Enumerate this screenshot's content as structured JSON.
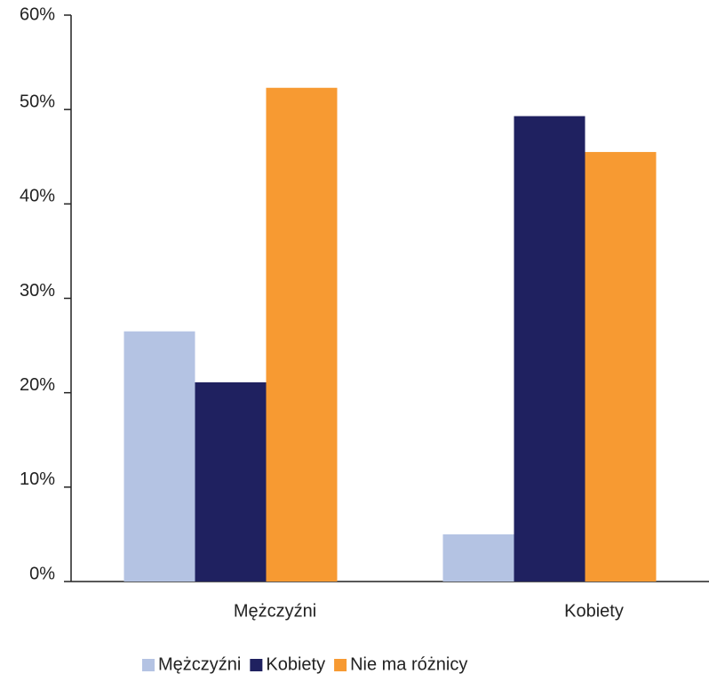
{
  "chart_data": {
    "type": "bar",
    "categories": [
      "Mężczyźni",
      "Kobiety"
    ],
    "series": [
      {
        "name": "Mężczyźni",
        "color": "#b4c3e3",
        "values": [
          26.5,
          5.0
        ]
      },
      {
        "name": "Kobiety",
        "color": "#1f2160",
        "values": [
          21.1,
          49.3
        ]
      },
      {
        "name": "Nie ma różnicy",
        "color": "#f79a32",
        "values": [
          52.3,
          45.5
        ]
      }
    ],
    "ylim": [
      0,
      60
    ],
    "yticks": [
      {
        "value": 0,
        "label": "0%"
      },
      {
        "value": 10,
        "label": "10%"
      },
      {
        "value": 20,
        "label": "20%"
      },
      {
        "value": 30,
        "label": "30%"
      },
      {
        "value": 40,
        "label": "40%"
      },
      {
        "value": 50,
        "label": "50%"
      },
      {
        "value": 60,
        "label": "60%"
      }
    ],
    "legend": "bottom"
  }
}
